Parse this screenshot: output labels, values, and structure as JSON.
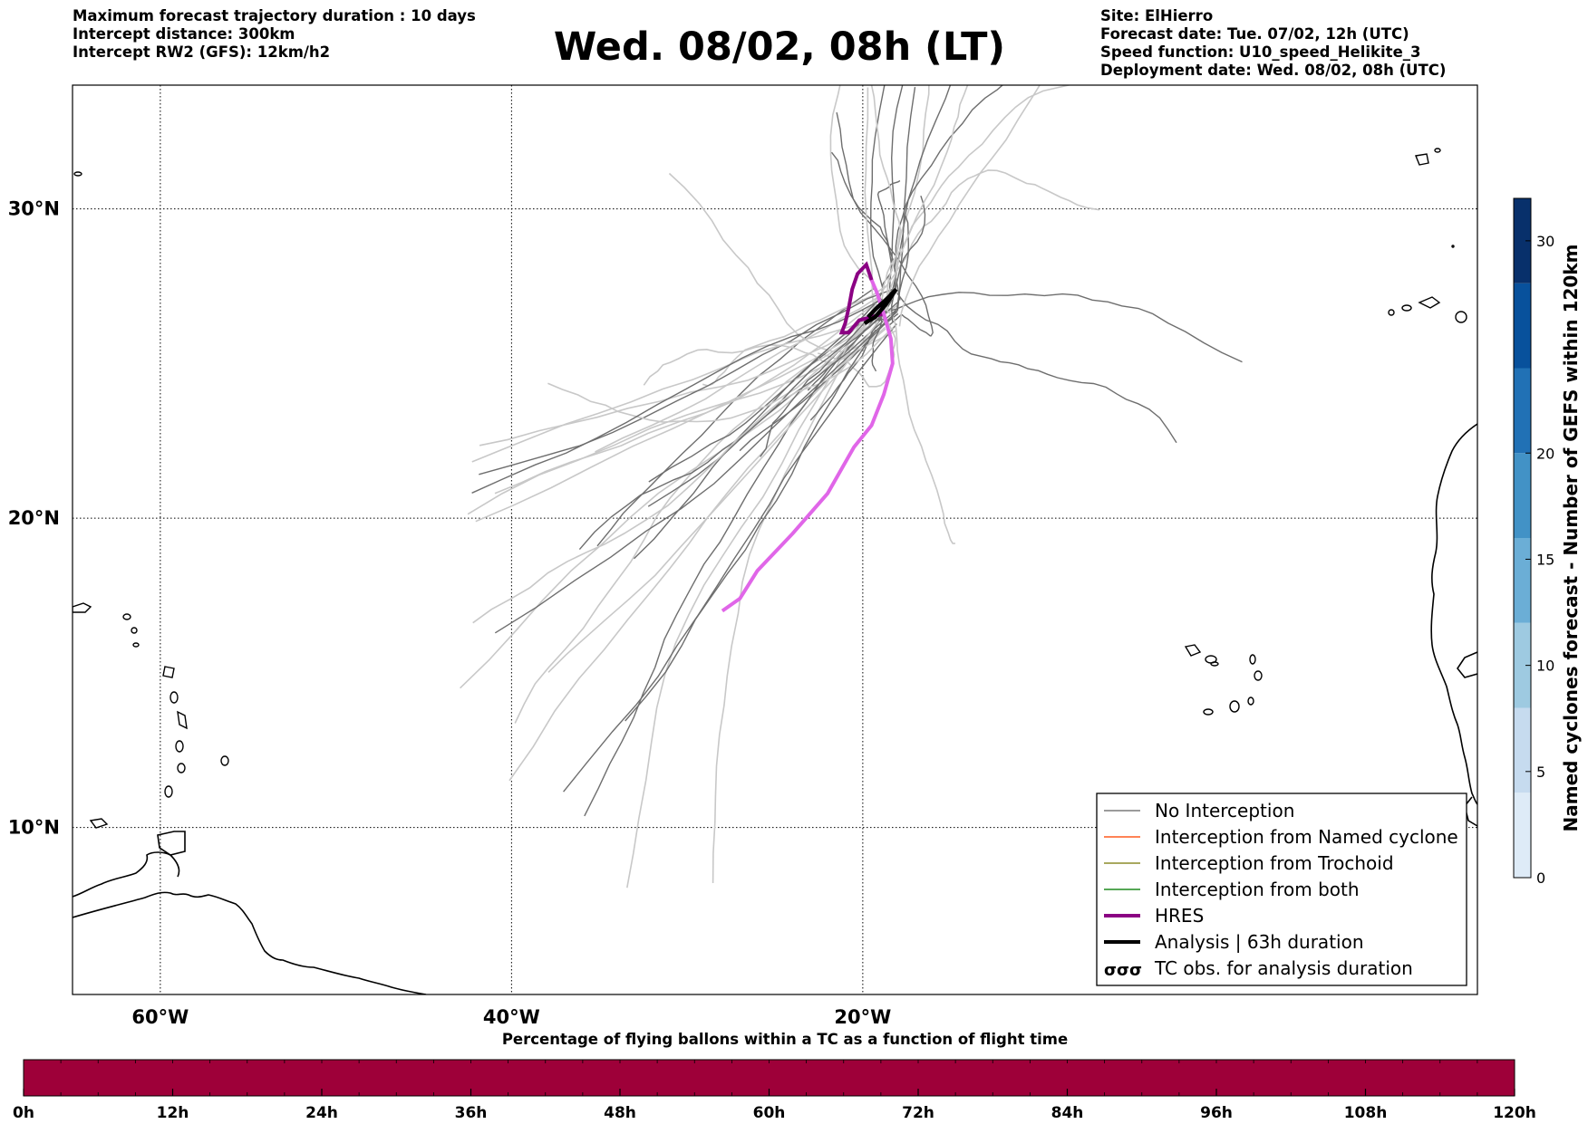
{
  "title": "Wed. 08/02, 08h (LT)",
  "info_left": [
    "Maximum forecast trajectory duration : 10 days",
    "Intercept distance: 300km",
    "Intercept RW2 (GFS):  12km/h2"
  ],
  "info_right": [
    "Site: ElHierro",
    "Forecast date: Tue. 07/02, 12h (UTC)",
    "Speed function: U10_speed_Helikite_3",
    "Deployment date: Wed. 08/02, 08h (UTC)"
  ],
  "map": {
    "lon_range": [
      -65,
      15
    ],
    "lat_range": [
      4.6,
      34.0
    ],
    "lat_ticks": [
      {
        "value": 30,
        "label": "30°N"
      },
      {
        "value": 20,
        "label": "20°N"
      },
      {
        "value": 10,
        "label": "10°N"
      }
    ],
    "lon_ticks": [
      {
        "value": -60,
        "label": "60°W"
      },
      {
        "value": -40,
        "label": "40°W"
      },
      {
        "value": -20,
        "label": "20°W"
      }
    ]
  },
  "legend": [
    {
      "label": "No Interception",
      "color": "#7a7a7a",
      "style": "thin"
    },
    {
      "label": "Interception from Named cyclone",
      "color": "#ff5a1f",
      "style": "thin"
    },
    {
      "label": "Interception from Trochoid",
      "color": "#8b8b2a",
      "style": "thin"
    },
    {
      "label": "Interception from both",
      "color": "#1f8a1f",
      "style": "thin"
    },
    {
      "label": "HRES",
      "color": "#8b0083",
      "style": "thick"
    },
    {
      "label": "Analysis | 63h duration",
      "color": "#000000",
      "style": "thick"
    },
    {
      "label": "TC obs. for analysis duration",
      "color": "#000000",
      "style": "symbol"
    }
  ],
  "colorbar": {
    "label": "Named cyclones forecast - Number of GEFS within 120km",
    "min": 0,
    "max": 32,
    "ticks": [
      0,
      5,
      10,
      15,
      20,
      30
    ],
    "colors": [
      "#deebf7",
      "#c6dbef",
      "#9ecae1",
      "#6baed6",
      "#4292c6",
      "#2171b5",
      "#08519c",
      "#08306b"
    ]
  },
  "percentage_bar": {
    "title": "Percentage of flying ballons within a TC as a function of flight time",
    "color": "#9e0039",
    "ticks": [
      "0h",
      "12h",
      "24h",
      "36h",
      "48h",
      "60h",
      "72h",
      "84h",
      "96h",
      "108h",
      "120h"
    ]
  },
  "trajectories": {
    "hres": [
      [
        -28,
        17.0
      ],
      [
        -27,
        17.4
      ],
      [
        -26,
        18.3
      ],
      [
        -24,
        19.5
      ],
      [
        -22,
        20.8
      ],
      [
        -20.5,
        22.3
      ],
      [
        -19.5,
        23.0
      ],
      [
        -18.8,
        24.0
      ],
      [
        -18.3,
        25.0
      ],
      [
        -18.4,
        25.8
      ],
      [
        -18.8,
        26.6
      ],
      [
        -19.2,
        27.3
      ],
      [
        -19.5,
        27.7
      ],
      [
        -19.8,
        28.2
      ],
      [
        -20.3,
        27.9
      ],
      [
        -20.6,
        27.4
      ],
      [
        -20.8,
        26.8
      ],
      [
        -21.0,
        26.3
      ],
      [
        -21.2,
        26.0
      ],
      [
        -20.8,
        26.0
      ],
      [
        -20.2,
        26.4
      ],
      [
        -19.5,
        26.5
      ],
      [
        -18.9,
        26.6
      ]
    ],
    "analysis": [
      [
        -19.9,
        26.3
      ],
      [
        -19.3,
        26.5
      ],
      [
        -18.7,
        26.9
      ],
      [
        -18.1,
        27.4
      ],
      [
        -18.6,
        27.1
      ],
      [
        -19.2,
        26.8
      ],
      [
        -19.7,
        26.5
      ]
    ]
  }
}
